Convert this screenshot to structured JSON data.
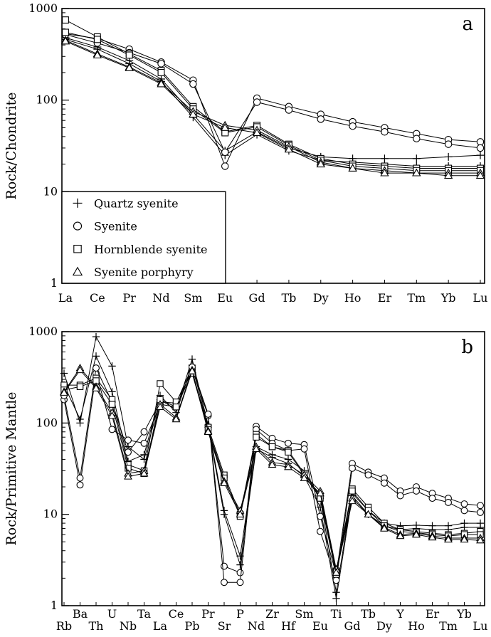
{
  "chart_data": [
    {
      "panel": "a",
      "type": "line",
      "ylabel": "Rock/Chondrite",
      "yscale": "log",
      "ylim": [
        1,
        1000
      ],
      "ytick_labels": [
        "1",
        "10",
        "100",
        "1000"
      ],
      "categories": [
        "La",
        "Ce",
        "Pr",
        "Nd",
        "Sm",
        "Eu",
        "Gd",
        "Tb",
        "Dy",
        "Ho",
        "Er",
        "Tm",
        "Yb",
        "Lu"
      ],
      "legend": [
        {
          "marker": "plus",
          "label": "Quartz syenite"
        },
        {
          "marker": "circle",
          "label": "Syenite"
        },
        {
          "marker": "square",
          "label": "Hornblende syenite"
        },
        {
          "marker": "triangle",
          "label": "Syenite porphyry"
        }
      ],
      "legend_position": "bottom-left",
      "series": [
        {
          "marker": "plus",
          "values": [
            480,
            380,
            270,
            170,
            70,
            28,
            45,
            30,
            24,
            23,
            23,
            23,
            24,
            25
          ]
        },
        {
          "marker": "plus",
          "values": [
            460,
            360,
            250,
            160,
            65,
            25,
            42,
            28,
            22,
            21,
            20,
            19,
            19,
            19
          ]
        },
        {
          "marker": "circle",
          "values": [
            530,
            470,
            360,
            260,
            165,
            19,
            105,
            85,
            70,
            58,
            50,
            43,
            37,
            35
          ]
        },
        {
          "marker": "circle",
          "values": [
            520,
            420,
            330,
            250,
            150,
            27,
            95,
            78,
            62,
            52,
            45,
            38,
            33,
            30
          ]
        },
        {
          "marker": "square",
          "values": [
            750,
            490,
            320,
            210,
            85,
            45,
            53,
            33,
            23,
            20,
            19,
            18,
            18,
            18
          ]
        },
        {
          "marker": "square",
          "values": [
            550,
            460,
            310,
            200,
            80,
            44,
            51,
            32,
            22,
            19,
            18,
            17,
            17,
            17
          ]
        },
        {
          "marker": "triangle",
          "values": [
            450,
            320,
            230,
            155,
            75,
            53,
            47,
            31,
            21,
            18,
            17,
            16,
            16,
            16
          ]
        },
        {
          "marker": "triangle",
          "values": [
            440,
            310,
            225,
            150,
            70,
            50,
            44,
            29,
            20,
            18,
            16,
            16,
            15,
            15
          ]
        }
      ]
    },
    {
      "panel": "b",
      "type": "line",
      "ylabel": "Rock/Primitive Mantle",
      "yscale": "log",
      "ylim": [
        1,
        1000
      ],
      "ytick_labels": [
        "1",
        "10",
        "100",
        "1000"
      ],
      "categories": [
        "Rb",
        "Ba",
        "Th",
        "U",
        "Nb",
        "Ta",
        "La",
        "Ce",
        "Pb",
        "Pr",
        "Sr",
        "P",
        "Nd",
        "Zr",
        "Hf",
        "Sm",
        "Eu",
        "Ti",
        "Gd",
        "Tb",
        "Dy",
        "Y",
        "Ho",
        "Er",
        "Tm",
        "Yb",
        "Lu"
      ],
      "series": [
        {
          "marker": "plus",
          "values": [
            350,
            100,
            880,
            420,
            55,
            40,
            180,
            140,
            500,
            95,
            11,
            3.5,
            55,
            45,
            40,
            30,
            15,
            1.4,
            17,
            11,
            8,
            7.5,
            7.6,
            7.5,
            7.5,
            8,
            8
          ]
        },
        {
          "marker": "plus",
          "values": [
            260,
            110,
            540,
            220,
            38,
            45,
            200,
            130,
            430,
            90,
            10,
            2.8,
            52,
            42,
            36,
            26,
            12,
            1.2,
            16,
            10,
            7.5,
            6.8,
            7,
            6.8,
            6.8,
            7.2,
            7.2
          ]
        },
        {
          "marker": "circle",
          "values": [
            180,
            21,
            350,
            85,
            65,
            60,
            160,
            150,
            390,
            120,
            2.7,
            2.3,
            92,
            68,
            60,
            58,
            9.5,
            2.2,
            36,
            29,
            25,
            18,
            20,
            17,
            15,
            13,
            12.5
          ]
        },
        {
          "marker": "circle",
          "values": [
            200,
            25,
            400,
            170,
            48,
            80,
            170,
            165,
            410,
            125,
            1.8,
            1.8,
            85,
            60,
            50,
            52,
            6.5,
            1.9,
            32,
            27,
            22,
            16,
            18,
            15,
            13.5,
            11,
            10.5
          ]
        },
        {
          "marker": "square",
          "values": [
            260,
            260,
            310,
            180,
            35,
            30,
            270,
            170,
            360,
            90,
            27,
            10,
            75,
            55,
            50,
            28,
            16,
            2.4,
            19,
            12,
            8,
            6.8,
            6.5,
            6.2,
            6,
            6.2,
            6.5
          ]
        },
        {
          "marker": "square",
          "values": [
            230,
            250,
            290,
            160,
            32,
            28,
            180,
            150,
            350,
            85,
            25,
            9.5,
            70,
            55,
            48,
            27,
            15,
            2.2,
            18,
            11,
            7.5,
            6.5,
            6.3,
            6,
            5.8,
            6,
            6
          ]
        },
        {
          "marker": "triangle",
          "values": [
            220,
            400,
            250,
            130,
            28,
            30,
            160,
            115,
            380,
            82,
            23,
            11,
            55,
            37,
            35,
            27,
            18,
            2.5,
            15,
            10,
            7.2,
            6,
            6.2,
            5.8,
            5.5,
            5.5,
            5.5
          ]
        },
        {
          "marker": "triangle",
          "values": [
            215,
            380,
            240,
            120,
            26,
            28,
            150,
            110,
            370,
            80,
            22,
            10,
            52,
            35,
            33,
            25,
            17,
            2.3,
            14,
            10,
            7,
            5.8,
            6,
            5.6,
            5.3,
            5.3,
            5.2
          ]
        }
      ]
    }
  ]
}
